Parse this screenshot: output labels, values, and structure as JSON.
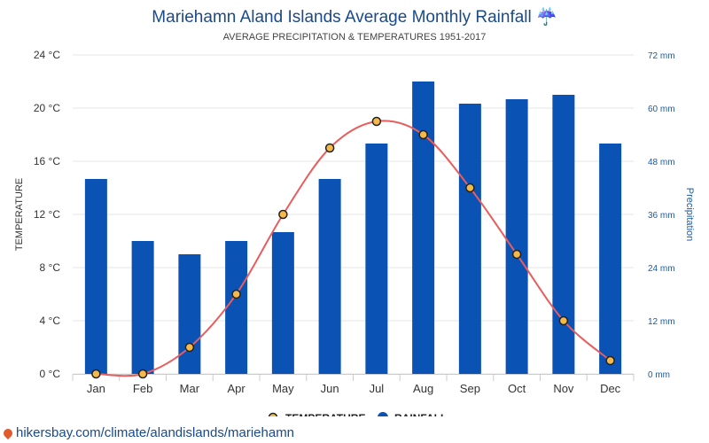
{
  "title": "Mariehamn Aland Islands Average Monthly Rainfall",
  "title_icon": "umbrella-rain-icon",
  "subtitle": "AVERAGE PRECIPITATION & TEMPERATURES 1951-2017",
  "credit": "hikersbay.com/climate/alandislands/mariehamn",
  "legend": {
    "temperature": "TEMPERATURE",
    "rainfall": "RAINFALL"
  },
  "colors": {
    "bar": "#0a52b4",
    "line": "#e85d5d",
    "point_fill": "#f5b94a",
    "title": "#1a4a8a",
    "right_axis": "#1a5aa8"
  },
  "chart_data": {
    "type": "bar",
    "title": "Mariehamn Aland Islands Average Monthly Rainfall",
    "subtitle": "AVERAGE PRECIPITATION & TEMPERATURES 1951-2017",
    "categories": [
      "Jan",
      "Feb",
      "Mar",
      "Apr",
      "May",
      "Jun",
      "Jul",
      "Aug",
      "Sep",
      "Oct",
      "Nov",
      "Dec"
    ],
    "series": [
      {
        "name": "RAINFALL",
        "type": "bar",
        "axis": "right",
        "unit": "mm",
        "values": [
          44,
          30,
          27,
          30,
          32,
          44,
          52,
          66,
          61,
          62,
          63,
          52
        ]
      },
      {
        "name": "TEMPERATURE",
        "type": "line",
        "axis": "left",
        "unit": "°C",
        "values": [
          0,
          0,
          2,
          6,
          12,
          17,
          19,
          18,
          14,
          9,
          4,
          1
        ]
      }
    ],
    "y_left": {
      "label": "TEMPERATURE",
      "ticks": [
        "0 °C",
        "4 °C",
        "8 °C",
        "12 °C",
        "16 °C",
        "20 °C",
        "24 °C"
      ],
      "range": [
        0,
        24
      ]
    },
    "y_right": {
      "label": "Precipitation",
      "ticks": [
        "0 mm",
        "12 mm",
        "24 mm",
        "36 mm",
        "48 mm",
        "60 mm",
        "72 mm"
      ],
      "range": [
        0,
        72
      ]
    },
    "grid": true,
    "legend_position": "bottom-center"
  }
}
